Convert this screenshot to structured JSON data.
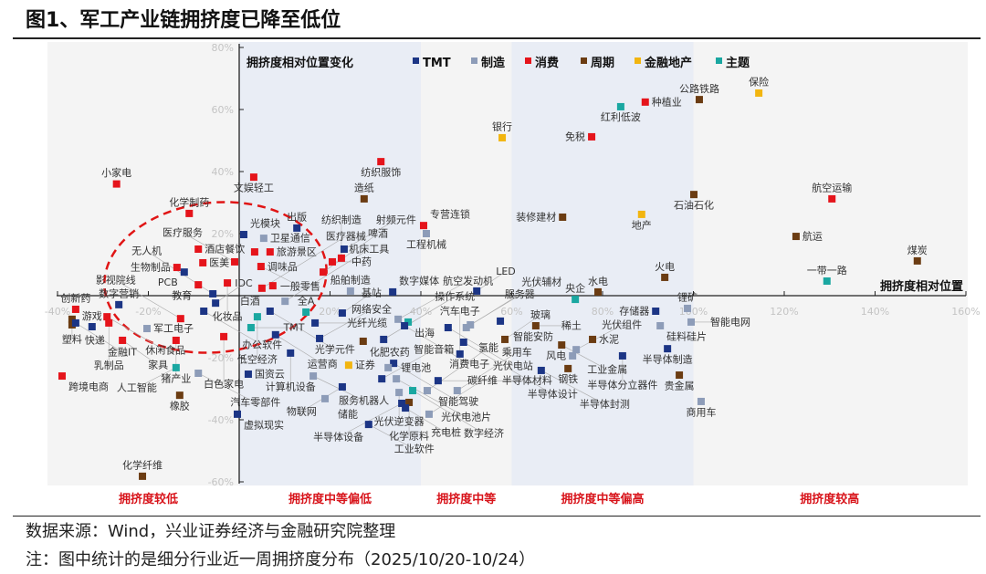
{
  "title": "图1、军工产业链拥挤度已降至低位",
  "footer": {
    "source": "数据来源：Wind，兴业证券经济与金融研究院整理",
    "note": "注：图中统计的是细分行业近一周拥挤度分布（2025/10/20-10/24）"
  },
  "chart_data": {
    "type": "scatter",
    "title": "拥挤度相对位置变化",
    "xlabel": "拥挤度相对位置",
    "ylabel": "",
    "xlim": [
      -40,
      160
    ],
    "ylim": [
      -60,
      80
    ],
    "x_ticks": [
      "-40%",
      "-20%",
      "0%",
      "20%",
      "40%",
      "60%",
      "80%",
      "100%",
      "120%",
      "140%",
      "160%"
    ],
    "x_tick_values": [
      -40,
      -20,
      0,
      20,
      40,
      60,
      80,
      100,
      120,
      140,
      160
    ],
    "y_ticks": [
      "80%",
      "60%",
      "40%",
      "20%",
      "0%",
      "-20%",
      "-40%",
      "-60%"
    ],
    "y_tick_values": [
      80,
      60,
      40,
      20,
      0,
      -20,
      -40,
      -60
    ],
    "legend_placement": "top",
    "series": [
      {
        "key": "T",
        "name": "TMT",
        "color": "#1c3585"
      },
      {
        "key": "M",
        "name": "制造",
        "color": "#8d9cb8"
      },
      {
        "key": "C",
        "name": "消费",
        "color": "#e5141b"
      },
      {
        "key": "P",
        "name": "周期",
        "color": "#6b3c12"
      },
      {
        "key": "F",
        "name": "金融地产",
        "color": "#f2b50f"
      },
      {
        "key": "Z",
        "name": "主题",
        "color": "#1aa7a1"
      }
    ],
    "zones": [
      {
        "label": "拥挤度较低",
        "range": [
          -40,
          0
        ]
      },
      {
        "label": "拥挤度中等偏低",
        "range": [
          0,
          40
        ]
      },
      {
        "label": "拥挤度中等",
        "range": [
          40,
          60
        ]
      },
      {
        "label": "拥挤度中等偏高",
        "range": [
          60,
          100
        ]
      },
      {
        "label": "拥挤度较高",
        "range": [
          100,
          160
        ]
      }
    ],
    "points": [
      {
        "name": "小家电",
        "s": "C",
        "x": -27,
        "y": 36,
        "lp": "t"
      },
      {
        "name": "化学制药",
        "s": "C",
        "x": -11,
        "y": 26.5,
        "lp": "t"
      },
      {
        "name": "文娱轻工",
        "s": "C",
        "x": 3.2,
        "y": 38.2,
        "lp": "t"
      },
      {
        "name": "出版",
        "s": "T",
        "x": 12.7,
        "y": 21.8,
        "lp": "t"
      },
      {
        "name": "光模块",
        "s": "T",
        "x": 1,
        "y": 19.7,
        "lp": "t"
      },
      {
        "name": "卫星通信",
        "s": "M",
        "x": 5.4,
        "y": 18.5,
        "lp": "r"
      },
      {
        "name": "酒店餐饮",
        "s": "C",
        "x": -9,
        "y": 15,
        "lp": "t"
      },
      {
        "name": "医美",
        "s": "C",
        "x": -8,
        "y": 10.6,
        "lp": "r"
      },
      {
        "name": "调味品",
        "s": "C",
        "x": 3.4,
        "y": 14.1,
        "lp": "b"
      },
      {
        "name": "旅游景区",
        "s": "C",
        "x": 6.8,
        "y": 14.1,
        "lp": "r"
      },
      {
        "name": "生物制品",
        "s": "C",
        "x": -13.7,
        "y": 9.1,
        "lp": "l"
      },
      {
        "name": "PCB",
        "s": "T",
        "x": -12.1,
        "y": 7.6,
        "lp": "b"
      },
      {
        "name": "医疗服务",
        "s": "C",
        "x": -1,
        "y": 10.9,
        "lp": "b"
      },
      {
        "name": "一般零售",
        "s": "C",
        "x": 4.8,
        "y": 9.4,
        "lp": "r"
      },
      {
        "name": "白酒",
        "s": "C",
        "x": 7.4,
        "y": 3.2,
        "lp": "t"
      },
      {
        "name": "医疗器械",
        "s": "C",
        "x": 5,
        "y": 2.4,
        "lp": "b"
      },
      {
        "name": "教育",
        "s": "C",
        "x": -9,
        "y": 3.5,
        "lp": "l"
      },
      {
        "name": "化妆品",
        "s": "C",
        "x": -2.6,
        "y": 4.1,
        "lp": "b"
      },
      {
        "name": "无人机",
        "s": "T",
        "x": -5.8,
        "y": 0.6,
        "lp": "t"
      },
      {
        "name": "IDC",
        "s": "T",
        "x": -5.2,
        "y": -2.4,
        "lp": "r"
      },
      {
        "name": "数字营销",
        "s": "T",
        "x": -26.5,
        "y": -2.9,
        "lp": "t"
      },
      {
        "name": "办公软件",
        "s": "T",
        "x": -7.8,
        "y": -5,
        "lp": "l"
      },
      {
        "name": "光学元件",
        "s": "T",
        "x": 6.8,
        "y": -5,
        "lp": "t"
      },
      {
        "name": "机床工具",
        "s": "M",
        "x": 10.1,
        "y": -1.8,
        "lp": "t"
      },
      {
        "name": "全A",
        "s": "Z",
        "x": 14.7,
        "y": -5.3,
        "lp": "t"
      },
      {
        "name": "低空经济",
        "s": "Z",
        "x": 4,
        "y": -6.8,
        "lp": "r"
      },
      {
        "name": "TMT",
        "s": "Z",
        "x": 2.6,
        "y": -10.3,
        "lp": "b"
      },
      {
        "name": "运营商",
        "s": "T",
        "x": 8,
        "y": -12.6,
        "lp": "r"
      },
      {
        "name": "光纤光缆",
        "s": "T",
        "x": 16.7,
        "y": -8.8,
        "lp": "r"
      },
      {
        "name": "计算机设备",
        "s": "T",
        "x": 11.3,
        "y": -18.5,
        "lp": "r"
      },
      {
        "name": "国资云",
        "s": "T",
        "x": 2,
        "y": -25.3,
        "lp": "r"
      },
      {
        "name": "网络安全",
        "s": "T",
        "x": 17.7,
        "y": -13.8,
        "lp": "b"
      },
      {
        "name": "服务机器人",
        "s": "M",
        "x": 16.3,
        "y": -25.9,
        "lp": "b"
      },
      {
        "name": "化肥农药",
        "s": "P",
        "x": 27.3,
        "y": -14.7,
        "lp": "l"
      },
      {
        "name": "基站",
        "s": "T",
        "x": 22.7,
        "y": -5.6,
        "lp": "b"
      },
      {
        "name": "航空发动机",
        "s": "M",
        "x": 35,
        "y": -7.6,
        "lp": "t"
      },
      {
        "name": "出海",
        "s": "Z",
        "x": 37.2,
        "y": -8.5,
        "lp": "t"
      },
      {
        "name": "消费电子",
        "s": "T",
        "x": 36.4,
        "y": -9.7,
        "lp": "b"
      },
      {
        "name": "操作系统",
        "s": "T",
        "x": 31.8,
        "y": -14.1,
        "lp": "t"
      },
      {
        "name": "智能驾驶",
        "s": "T",
        "x": 34,
        "y": -21.8,
        "lp": "t"
      },
      {
        "name": "锂电池",
        "s": "M",
        "x": 32.8,
        "y": -23.2,
        "lp": "l"
      },
      {
        "name": "证券",
        "s": "F",
        "x": 24.1,
        "y": -22.4,
        "lp": "b"
      },
      {
        "name": "智能音箱",
        "s": "T",
        "x": 31.4,
        "y": -26.8,
        "lp": "b"
      },
      {
        "name": "光伏电池片",
        "s": "M",
        "x": 34.6,
        "y": -26.8,
        "lp": "r"
      },
      {
        "name": "光伏逆变器",
        "s": "M",
        "x": 35.2,
        "y": -31.2,
        "lp": "l"
      },
      {
        "name": "物联网",
        "s": "T",
        "x": 22.7,
        "y": -29.4,
        "lp": "b"
      },
      {
        "name": "储能",
        "s": "M",
        "x": 18.9,
        "y": -33.2,
        "lp": "b"
      },
      {
        "name": "数字经济",
        "s": "Z",
        "x": 38.2,
        "y": -30.6,
        "lp": "r"
      },
      {
        "name": "化学原料",
        "s": "P",
        "x": 37.4,
        "y": -34.4,
        "lp": "b"
      },
      {
        "name": "半导体设备",
        "s": "T",
        "x": 35.8,
        "y": -34.7,
        "lp": "l"
      },
      {
        "name": "充电桩",
        "s": "T",
        "x": 36.6,
        "y": -36.2,
        "lp": "b"
      },
      {
        "name": "工业软件",
        "s": "T",
        "x": 28.5,
        "y": -41.5,
        "lp": "b"
      },
      {
        "name": "氢能",
        "s": "M",
        "x": 41.4,
        "y": -30.6,
        "lp": "b"
      },
      {
        "name": "碳纤维",
        "s": "M",
        "x": 41.8,
        "y": -38.2,
        "lp": "b"
      },
      {
        "name": "半导体材料",
        "s": "T",
        "x": 43.8,
        "y": -27.4,
        "lp": "t"
      },
      {
        "name": "乘用车",
        "s": "M",
        "x": 48,
        "y": -30.6,
        "lp": "b"
      },
      {
        "name": "汽车电子",
        "s": "T",
        "x": 48.6,
        "y": -18.8,
        "lp": "r"
      },
      {
        "name": "半导体设计",
        "s": "T",
        "x": 49.4,
        "y": -15,
        "lp": "l"
      },
      {
        "name": "服务器",
        "s": "M",
        "x": 50,
        "y": -10.3,
        "lp": "b"
      },
      {
        "name": "光伏电站",
        "s": "T",
        "x": 46,
        "y": -10.3,
        "lp": "t"
      },
      {
        "name": "光伏辅材",
        "s": "M",
        "x": 50.9,
        "y": -9.4,
        "lp": "r"
      },
      {
        "name": "智能安防",
        "s": "T",
        "x": 57.5,
        "y": -8.2,
        "lp": "t"
      },
      {
        "name": "玻璃",
        "s": "P",
        "x": 58.5,
        "y": -14.1,
        "lp": "r"
      },
      {
        "name": "数字媒体",
        "s": "T",
        "x": 33.8,
        "y": 1.2,
        "lp": "t"
      },
      {
        "name": "LED",
        "s": "T",
        "x": 52.3,
        "y": 1.5,
        "lp": "t"
      },
      {
        "name": "船舶制造",
        "s": "M",
        "x": 24.5,
        "y": 1.5,
        "lp": "t"
      },
      {
        "name": "啤酒",
        "s": "C",
        "x": 18.5,
        "y": 7.6,
        "lp": "b"
      },
      {
        "name": "纺织制造",
        "s": "C",
        "x": 22.5,
        "y": 12.1,
        "lp": "r"
      },
      {
        "name": "中药",
        "s": "C",
        "x": 20.5,
        "y": 10.9,
        "lp": "t"
      },
      {
        "name": "射频元件",
        "s": "T",
        "x": 23.1,
        "y": 15,
        "lp": "t"
      },
      {
        "name": "造纸",
        "s": "P",
        "x": 27.5,
        "y": 31.2,
        "lp": "b"
      },
      {
        "name": "纺织服饰",
        "s": "C",
        "x": 31.2,
        "y": 43.2,
        "lp": "b"
      },
      {
        "name": "专营连锁",
        "s": "C",
        "x": 40.6,
        "y": 22.6,
        "lp": "t"
      },
      {
        "name": "工程机械",
        "s": "M",
        "x": 41.2,
        "y": 20,
        "lp": "b"
      },
      {
        "name": "银行",
        "s": "F",
        "x": 57.9,
        "y": 50.9,
        "lp": "t"
      },
      {
        "name": "免税",
        "s": "C",
        "x": 77.6,
        "y": 51.2,
        "lp": "l"
      },
      {
        "name": "红利低波",
        "s": "Z",
        "x": 84,
        "y": 60.9,
        "lp": "b"
      },
      {
        "name": "种植业",
        "s": "C",
        "x": 89.4,
        "y": 62.4,
        "lp": "r"
      },
      {
        "name": "公路铁路",
        "s": "P",
        "x": 101.3,
        "y": 63.2,
        "lp": "b"
      },
      {
        "name": "石油石化",
        "s": "P",
        "x": 100.1,
        "y": 32.6,
        "lp": "b"
      },
      {
        "name": "装修建材",
        "s": "P",
        "x": 71.2,
        "y": 25.3,
        "lp": "l"
      },
      {
        "name": "地产",
        "s": "F",
        "x": 88.6,
        "y": 26.2,
        "lp": "b"
      },
      {
        "name": "火电",
        "s": "P",
        "x": 93.7,
        "y": 5.9,
        "lp": "t"
      },
      {
        "name": "水电",
        "s": "P",
        "x": 79,
        "y": 1.2,
        "lp": "t"
      },
      {
        "name": "央企",
        "s": "Z",
        "x": 74,
        "y": -1.2,
        "lp": "t"
      },
      {
        "name": "保险",
        "s": "F",
        "x": 114.4,
        "y": 65.3,
        "lp": "t"
      },
      {
        "name": "航空运输",
        "s": "C",
        "x": 130.5,
        "y": 31.2,
        "lp": "t"
      },
      {
        "name": "航运",
        "s": "P",
        "x": 122.6,
        "y": 19.1,
        "lp": "r"
      },
      {
        "name": "煤炭",
        "s": "P",
        "x": 149.3,
        "y": 11.2,
        "lp": "t"
      },
      {
        "name": "一带一路",
        "s": "Z",
        "x": 129.4,
        "y": 4.7,
        "lp": "t"
      },
      {
        "name": "稀土",
        "s": "P",
        "x": 65.3,
        "y": -9.7,
        "lp": "t"
      },
      {
        "name": "工业金属",
        "s": "P",
        "x": 71,
        "y": -15.9,
        "lp": "t"
      },
      {
        "name": "水泥",
        "s": "P",
        "x": 77.8,
        "y": -14.1,
        "lp": "r"
      },
      {
        "name": "光伏组件",
        "s": "M",
        "x": 74.2,
        "y": -17.4,
        "lp": "l"
      },
      {
        "name": "风电",
        "s": "M",
        "x": 73.4,
        "y": -19.4,
        "lp": "b"
      },
      {
        "name": "钢铁",
        "s": "P",
        "x": 72.4,
        "y": -23.5,
        "lp": "b"
      },
      {
        "name": "半导体封测",
        "s": "T",
        "x": 66.5,
        "y": -24.1,
        "lp": "b"
      },
      {
        "name": "半导体分立器件",
        "s": "T",
        "x": 84.4,
        "y": -19.4,
        "lp": "b"
      },
      {
        "name": "存储器",
        "s": "T",
        "x": 91.7,
        "y": -5,
        "lp": "l"
      },
      {
        "name": "硅料硅片",
        "s": "M",
        "x": 92.7,
        "y": -9.7,
        "lp": "b"
      },
      {
        "name": "锂矿",
        "s": "M",
        "x": 98.7,
        "y": -4.1,
        "lp": "r"
      },
      {
        "name": "智能电网",
        "s": "M",
        "x": 99.5,
        "y": -8.5,
        "lp": "b"
      },
      {
        "name": "半导体制造",
        "s": "T",
        "x": 94.3,
        "y": -17.1,
        "lp": "b"
      },
      {
        "name": "贵金属",
        "s": "P",
        "x": 96.9,
        "y": -25.6,
        "lp": "b"
      },
      {
        "name": "商用车",
        "s": "M",
        "x": 101.7,
        "y": -34.1,
        "lp": "b"
      },
      {
        "name": "创新药",
        "s": "C",
        "x": -36,
        "y": -4.4,
        "lp": "t"
      },
      {
        "name": "塑料",
        "s": "P",
        "x": -36.8,
        "y": -7.6,
        "lp": "l"
      },
      {
        "name": "快递",
        "s": "P",
        "x": -36.8,
        "y": -9.4,
        "lp": "b"
      },
      {
        "name": "金融IT",
        "s": "T",
        "x": -36,
        "y": -8.8,
        "lp": "b"
      },
      {
        "name": "游戏",
        "s": "T",
        "x": -32.4,
        "y": -10,
        "lp": "b"
      },
      {
        "name": "休闲食品",
        "s": "C",
        "x": -29.1,
        "y": -6.8,
        "lp": "t"
      },
      {
        "name": "乳制品",
        "s": "C",
        "x": -28.7,
        "y": -8.8,
        "lp": "b"
      },
      {
        "name": "家具",
        "s": "C",
        "x": -25.7,
        "y": -14.4,
        "lp": "b"
      },
      {
        "name": "军工电子",
        "s": "M",
        "x": -20.3,
        "y": -10.6,
        "lp": "t"
      },
      {
        "name": "猪产业",
        "s": "C",
        "x": -13.9,
        "y": -14.4,
        "lp": "b"
      },
      {
        "name": "影视院线",
        "s": "C",
        "x": -12.9,
        "y": -7.4,
        "lp": "b"
      },
      {
        "name": "白色家电",
        "s": "C",
        "x": -3.4,
        "y": -13.2,
        "lp": "b"
      },
      {
        "name": "人工智能",
        "s": "Z",
        "x": -13.9,
        "y": -23.2,
        "lp": "b"
      },
      {
        "name": "汽车零部件",
        "s": "M",
        "x": -9,
        "y": -25,
        "lp": "b"
      },
      {
        "name": "跨境电商",
        "s": "C",
        "x": -39,
        "y": -25.9,
        "lp": "b"
      },
      {
        "name": "橡胶",
        "s": "P",
        "x": -13.1,
        "y": -32.1,
        "lp": "b"
      },
      {
        "name": "虚拟现实",
        "s": "T",
        "x": -0.4,
        "y": -38.2,
        "lp": "t"
      },
      {
        "name": "化学纤维",
        "s": "P",
        "x": -21.3,
        "y": -58.2,
        "lp": "t"
      }
    ]
  }
}
